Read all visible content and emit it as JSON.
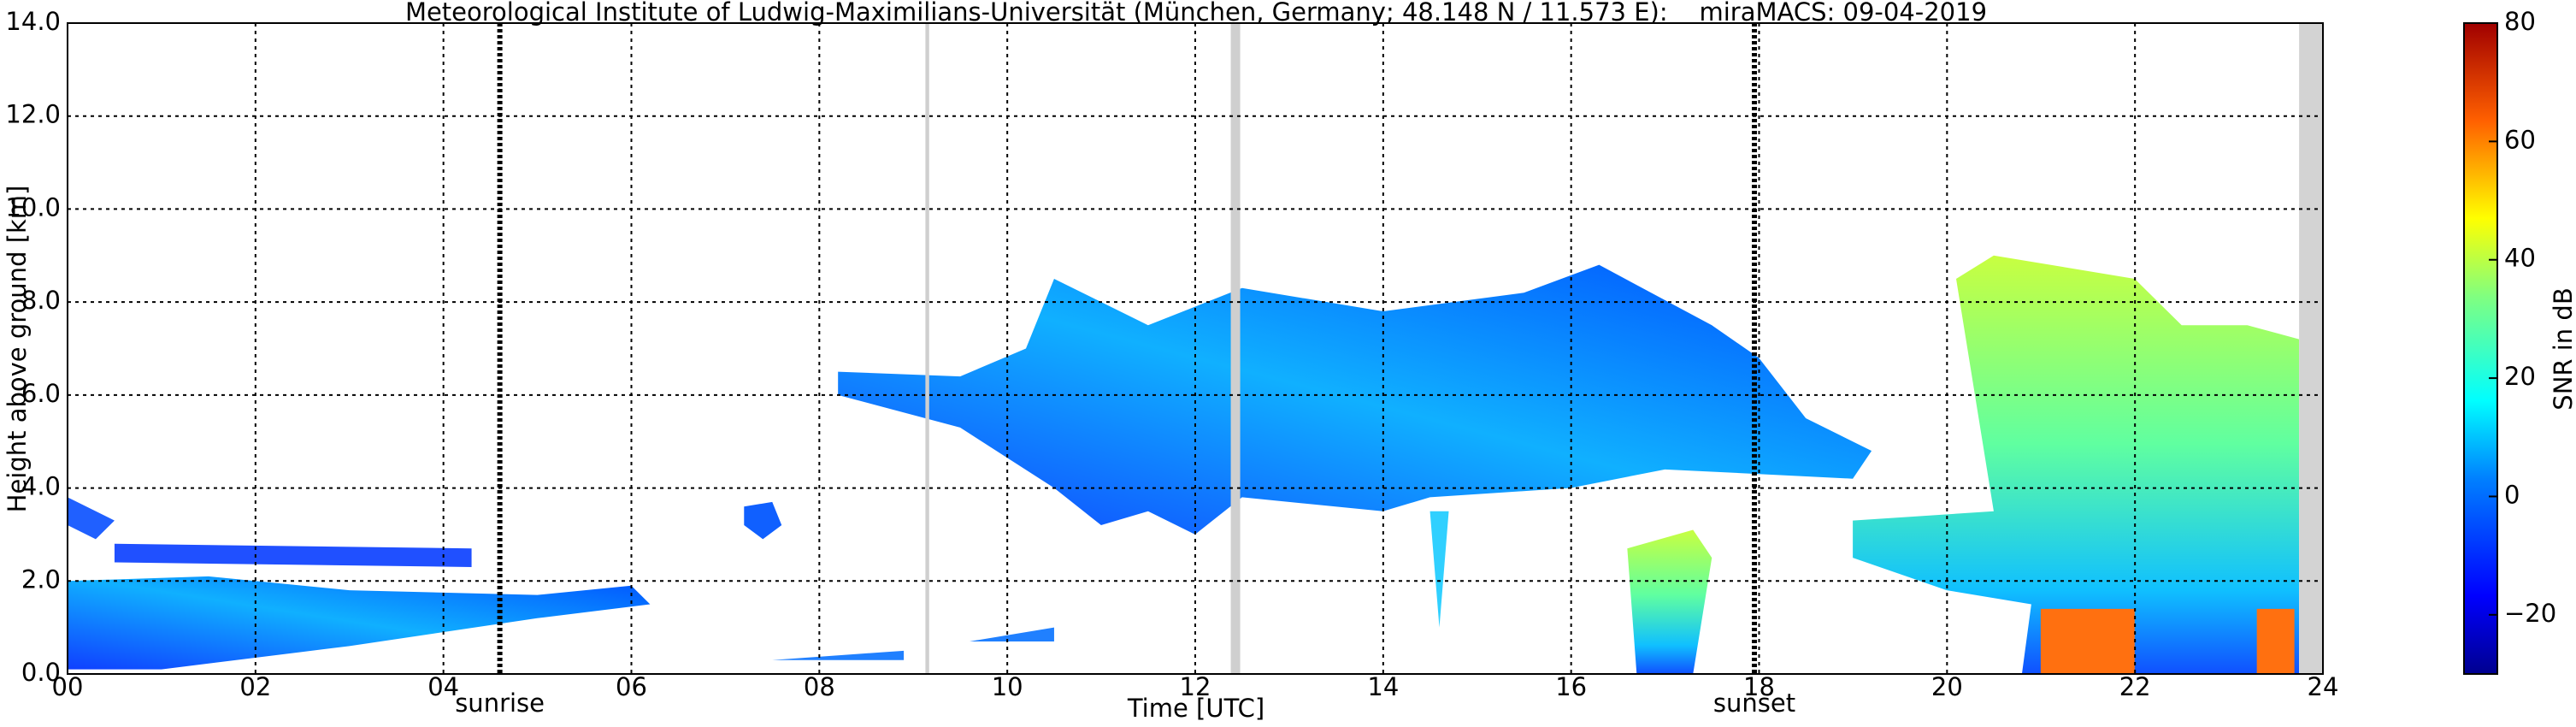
{
  "chart_data": {
    "type": "heatmap",
    "title": "Meteorological Institute of Ludwig-Maximilians-Universität (München, Germany; 48.148 N / 11.573 E):    miraMACS: 09-04-2019",
    "x_label": "Time [UTC]",
    "y_label": "Height above ground [km]",
    "xlim": [
      0,
      24
    ],
    "xticks": [
      {
        "value": 0,
        "label": "00"
      },
      {
        "value": 2,
        "label": "02"
      },
      {
        "value": 4,
        "label": "04"
      },
      {
        "value": 6,
        "label": "06"
      },
      {
        "value": 8,
        "label": "08"
      },
      10,
      12,
      14,
      16,
      18,
      20,
      22,
      24
    ],
    "ylim": [
      0,
      14
    ],
    "yticks": [
      {
        "value": 0,
        "label": "0.0"
      },
      {
        "value": 2,
        "label": "2.0"
      },
      {
        "value": 4,
        "label": "4.0"
      },
      {
        "value": 6,
        "label": "6.0"
      },
      {
        "value": 8,
        "label": "8.0"
      },
      {
        "value": 10,
        "label": "10.0"
      },
      {
        "value": 12,
        "label": "12.0"
      },
      {
        "value": 14,
        "label": "14.0"
      }
    ],
    "grid": true,
    "annotations": [
      {
        "label": "sunrise",
        "x": 4.6
      },
      {
        "label": "sunset",
        "x": 17.95
      }
    ],
    "colorbar": {
      "label": "SNR in dB",
      "colormap": "jet",
      "lim": [
        -30,
        80
      ],
      "ticks": [
        {
          "value": -20,
          "label": "−20"
        },
        0,
        20,
        40,
        60,
        80
      ]
    }
  }
}
